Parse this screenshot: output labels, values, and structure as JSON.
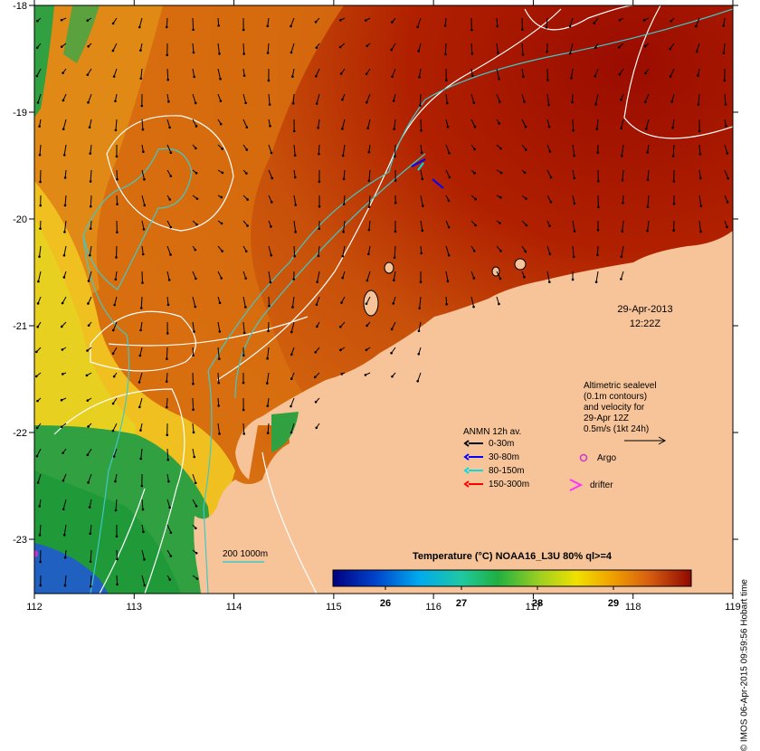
{
  "map": {
    "date": "29-Apr-2013",
    "time": "12:22Z",
    "credit": "© IMOS 06-Apr-2015 09:59:56 Hobart time",
    "axes": {
      "lon_ticks": [
        "112",
        "113",
        "114",
        "115",
        "116",
        "117",
        "118",
        "119"
      ],
      "lat_ticks": [
        "-18",
        "-19",
        "-20",
        "-21",
        "-22",
        "-23"
      ]
    },
    "altimetry_note": [
      "Altimetric sealevel",
      "(0.1m contours)",
      "and velocity for",
      "29-Apr 12Z",
      "0.5m/s (1kt 24h)"
    ],
    "anmn_legend": {
      "title": "ANMN 12h av.",
      "entries": [
        {
          "label": "0-30m",
          "color": "#000000"
        },
        {
          "label": "30-80m",
          "color": "#0000ff"
        },
        {
          "label": "80-150m",
          "color": "#00e0e0"
        },
        {
          "label": "150-300m",
          "color": "#ff0000"
        }
      ]
    },
    "argo_label": "Argo",
    "drifter_label": "drifter",
    "bathymetry_label": "200  1000m",
    "colorbar": {
      "title": "Temperature (°C) NOAA16_L3U 80% ql>=4",
      "ticks": [
        "26",
        "27",
        "28",
        "29"
      ]
    },
    "colors": {
      "land": "#f7c49a",
      "warm": "#a01000",
      "mid": "#d86a10",
      "cool": "#f4b020",
      "green": "#33aa44",
      "contour": "#ffffff",
      "isobath": "#40c8c8"
    }
  }
}
